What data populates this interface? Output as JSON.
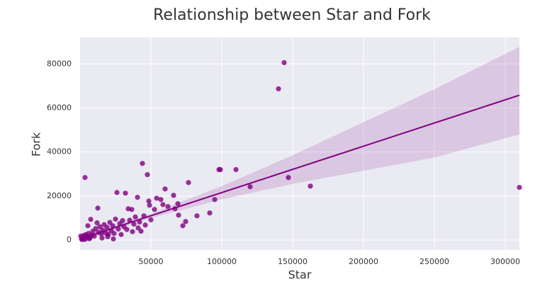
{
  "chart_data": {
    "type": "scatter",
    "title": "Relationship between Star and Fork",
    "x_label": "Star",
    "y_label": "Fork",
    "series": [
      {
        "color": "#800080",
        "x": [
          144000,
          140000,
          3500,
          44000,
          47500,
          98000,
          99000,
          110000,
          120000,
          147000,
          162500,
          310000,
          76500,
          60000,
          66000,
          26000,
          32000,
          95000,
          91500,
          82500,
          74500,
          72500,
          69500,
          69000,
          67000,
          58500,
          62000,
          57000,
          54000,
          52500,
          48500,
          49000,
          40500,
          36500,
          34000,
          12500,
          7500,
          1000,
          2000,
          3000,
          4000,
          5000,
          6000,
          8000,
          9000,
          10000,
          11000,
          13000,
          14000,
          15000,
          16000,
          17000,
          18000,
          19000,
          20000,
          21000,
          22000,
          23000,
          24000,
          25000,
          27000,
          28000,
          29000,
          30000,
          31000,
          33000,
          35000,
          37000,
          38000,
          39000,
          41000,
          42000,
          43000,
          45000,
          46000,
          50000,
          1500,
          2500,
          5500,
          7000,
          12000,
          15500,
          19500,
          23500,
          500,
          3500,
          6500
        ],
        "y": [
          80600,
          68700,
          28400,
          34800,
          29700,
          32000,
          32000,
          32000,
          24200,
          28400,
          24500,
          23900,
          26100,
          23200,
          20300,
          21600,
          21300,
          18400,
          12300,
          11000,
          8400,
          6500,
          11300,
          16500,
          14200,
          16100,
          15200,
          18400,
          19000,
          13900,
          17700,
          15800,
          19400,
          13900,
          14200,
          14500,
          9400,
          500,
          1200,
          800,
          2500,
          1500,
          3000,
          2200,
          4000,
          1800,
          5200,
          3500,
          6000,
          2800,
          4500,
          7000,
          3200,
          5800,
          2600,
          8000,
          4200,
          6500,
          3000,
          9500,
          5000,
          7500,
          2500,
          8800,
          6000,
          4800,
          9000,
          3800,
          7200,
          10500,
          5500,
          8200,
          4000,
          11000,
          6800,
          9200,
          200,
          2000,
          6500,
          1000,
          7800,
          900,
          1500,
          500,
          1800,
          300,
          600
        ]
      }
    ],
    "fit": {
      "x": [
        0,
        310000
      ],
      "y": [
        500,
        65800
      ]
    },
    "band": {
      "x": [
        0,
        50000,
        100000,
        150000,
        200000,
        250000,
        310000
      ],
      "upper": [
        1700,
        12000,
        24500,
        38500,
        53500,
        68500,
        87700
      ],
      "lower": [
        -700,
        10000,
        18500,
        25500,
        31500,
        37500,
        48000
      ]
    },
    "fit_color": "#800080",
    "xlim": [
      0,
      310000
    ],
    "ylim": [
      -4500,
      92000
    ],
    "xticks": [
      50000,
      100000,
      150000,
      200000,
      250000,
      300000
    ],
    "yticks": [
      0,
      20000,
      40000,
      60000,
      80000
    ],
    "grid": true
  }
}
